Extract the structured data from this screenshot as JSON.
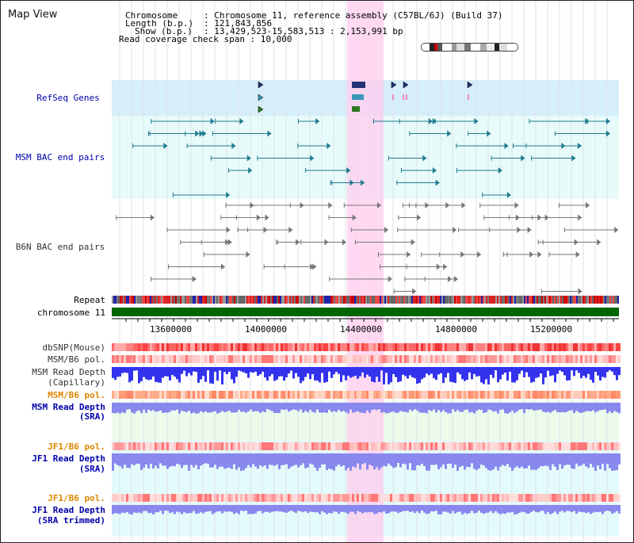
{
  "window_title": "Map View",
  "info": {
    "chromosome_key": "Chromosome",
    "chromosome_value": ": Chromosome 11, reference assembly (C57BL/6J) (Build 37)",
    "length_key": "Length (b.p.)",
    "length_value": ": 121,843,856",
    "show_key": "Show (b.p.)",
    "show_value": ": 13,429,523-15,583,513 : 2,153,991 bp",
    "coverage_line": "Read coverage check span : 10,000"
  },
  "tracks": {
    "refseq": "RefSeq Genes",
    "msm_bac": "MSM BAC end pairs",
    "b6n_bac": "B6N BAC end pairs",
    "repeat": "Repeat",
    "chromosome": "chromosome 11",
    "dbsnp": "dbSNP(Mouse)",
    "msm_b6_pol_1": "MSM/B6 pol.",
    "msm_read_depth_cap_1": "MSM Read Depth",
    "msm_read_depth_cap_2": "(Capillary)",
    "msm_b6_pol_2": "MSM/B6 pol.",
    "msm_read_depth_sra_1": "MSM Read Depth",
    "msm_read_depth_sra_2": "(SRA)",
    "jf1_b6_pol_1": "JF1/B6 pol.",
    "jf1_read_depth_sra_1": "JF1 Read Depth",
    "jf1_read_depth_sra_2": "(SRA)",
    "jf1_b6_pol_2": "JF1/B6 pol.",
    "jf1_read_depth_trim_1": "JF1 Read Depth",
    "jf1_read_depth_trim_2": "(SRA trimmed)"
  },
  "axis": {
    "ticks": [
      "13600000",
      "14000000",
      "14400000",
      "14800000",
      "15200000"
    ]
  },
  "colors": {
    "label_blue": "#0000aa",
    "label_orange": "#dd8800",
    "refseq_bg": "#d4eefa",
    "bac_bg": "#e6fbfb",
    "highlight": "#ffccf0",
    "msm_bac_glyph": "#1f7a90",
    "b6n_bac_glyph": "#777777",
    "depth_blue": "#3333ee",
    "depth_light_blue": "#8888ee",
    "chromosome_green": "#006600"
  }
}
